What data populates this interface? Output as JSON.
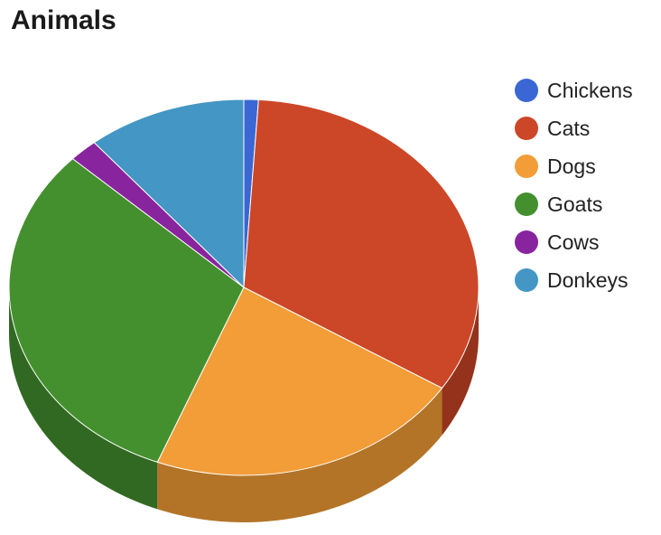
{
  "chart_data": {
    "type": "pie",
    "title": "Animals",
    "three_d": true,
    "legend_position": "right",
    "slices": [
      {
        "name": "Chickens",
        "value": 1,
        "color": "#3a67d4",
        "side_color": "#28499a"
      },
      {
        "name": "Cats",
        "value": 33,
        "color": "#cc4628",
        "side_color": "#94321c"
      },
      {
        "name": "Dogs",
        "value": 22,
        "color": "#f29d38",
        "side_color": "#b37428"
      },
      {
        "name": "Goats",
        "value": 31,
        "color": "#44902f",
        "side_color": "#316922"
      },
      {
        "name": "Cows",
        "value": 2,
        "color": "#88249d",
        "side_color": "#621a72"
      },
      {
        "name": "Donkeys",
        "value": 11,
        "color": "#4496c4",
        "side_color": "#316d8f"
      }
    ]
  }
}
